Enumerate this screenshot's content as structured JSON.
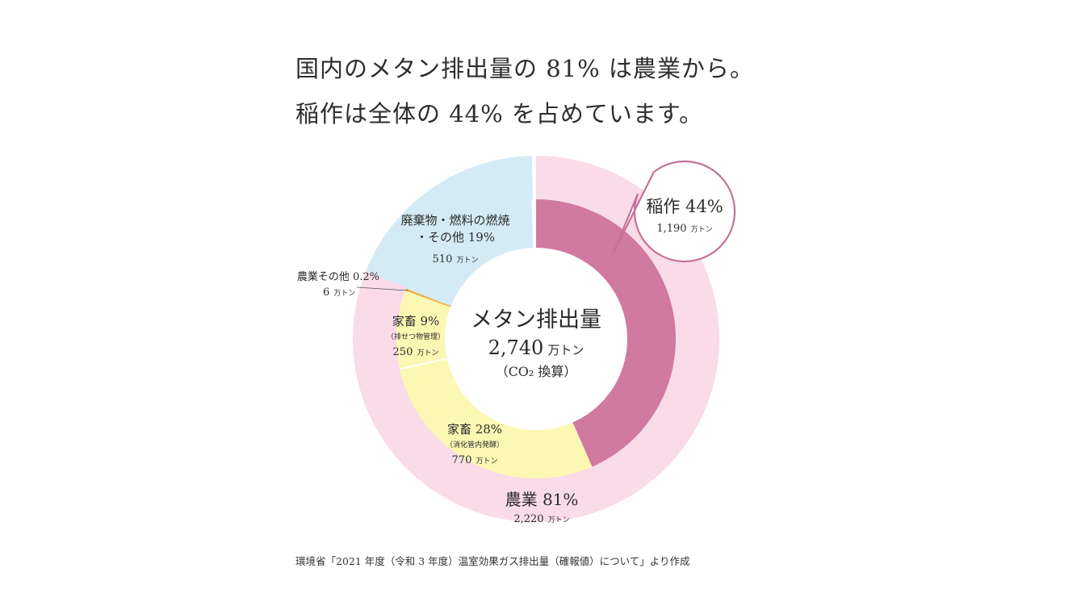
{
  "headline": {
    "line1": "国内のメタン排出量の 81% は農業から。",
    "line2": "稲作は全体の 44% を占めています。"
  },
  "center": {
    "title": "メタン排出量",
    "value": "2,740",
    "unit": "万トン",
    "note": "（CO₂ 換算）"
  },
  "labels": {
    "rice": {
      "pct": "稲作 44%",
      "val": "1,190",
      "unit": "万トン"
    },
    "agri": {
      "pct": "農業 81%",
      "val": "2,220",
      "unit": "万トン"
    },
    "enteric": {
      "pct": "家畜 28%",
      "sub": "（消化管内発酵）",
      "val": "770",
      "unit": "万トン"
    },
    "manure": {
      "pct": "家畜 9%",
      "sub": "（排せつ物管理）",
      "val": "250",
      "unit": "万トン"
    },
    "other_agri": {
      "pct": "農業その他 0.2%",
      "val": "6",
      "unit": "万トン"
    },
    "waste": {
      "pct1": "廃棄物・燃料の燃焼",
      "pct2": "・その他 19%",
      "val": "510",
      "unit": "万トン"
    }
  },
  "source": "環境省「2021 年度（令和 3 年度）温室効果ガス排出量（確報値）について」より作成",
  "colors": {
    "rice": "#d07aa0",
    "agri_outer": "#fadbe8",
    "livestock": "#fdf7b4",
    "other_agri": "#f2a93b",
    "waste": "#d4ebf6",
    "callout_stroke": "#c4729a"
  },
  "chart_data": {
    "type": "pie",
    "title": "メタン排出量",
    "unit": "万トン",
    "rings": [
      {
        "name": "inner",
        "slices": [
          {
            "label": "稲作",
            "value": 1190,
            "percent": 44
          },
          {
            "label": "家畜（消化管内発酵）",
            "value": 770,
            "percent": 28
          },
          {
            "label": "家畜（排せつ物管理）",
            "value": 250,
            "percent": 9
          },
          {
            "label": "農業その他",
            "value": 6,
            "percent": 0.2
          },
          {
            "label": "廃棄物・燃料の燃焼・その他",
            "value": 510,
            "percent": 19
          }
        ]
      },
      {
        "name": "outer",
        "slices": [
          {
            "label": "農業",
            "value": 2220,
            "percent": 81
          },
          {
            "label": "廃棄物・燃料の燃焼・その他",
            "value": 510,
            "percent": 19
          }
        ]
      }
    ],
    "total": 2740
  }
}
